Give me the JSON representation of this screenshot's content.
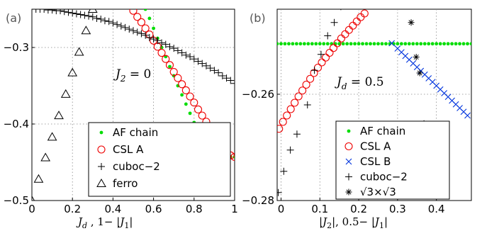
{
  "chart_data": [
    {
      "type": "scatter",
      "panel": "(a)",
      "annotation": "J2 = 0",
      "xlabel": "J_d ,  1− |J_1|",
      "ylabel": "",
      "xlim": [
        0,
        1
      ],
      "ylim": [
        -0.5,
        -0.25
      ],
      "xticks": [
        "0",
        "0.2",
        "0.4",
        "0.6",
        "0.8",
        "1"
      ],
      "xtick_values": [
        0,
        0.2,
        0.4,
        0.6,
        0.8,
        1
      ],
      "yticks": [
        "−0.5",
        "−0.4",
        "−0.3"
      ],
      "ytick_values": [
        -0.5,
        -0.4,
        -0.3
      ],
      "grid": true,
      "legend_position": "bottom-right",
      "series": [
        {
          "name": "AF chain",
          "marker": "dot",
          "color": "#00dd00",
          "x": [
            0.56,
            0.58,
            0.6,
            0.62,
            0.64,
            0.66,
            0.68,
            0.7,
            0.72,
            0.74,
            0.76,
            0.78,
            0.8,
            0.82,
            0.84,
            0.86,
            0.88,
            0.9,
            0.92,
            0.94,
            0.96,
            0.98,
            1.0
          ],
          "y": [
            -0.25,
            -0.262,
            -0.275,
            -0.288,
            -0.3,
            -0.312,
            -0.325,
            -0.337,
            -0.35,
            -0.362,
            -0.374,
            -0.386,
            -0.398,
            -0.409,
            -0.42,
            -0.431,
            -0.442,
            -0.443,
            -0.444,
            -0.444,
            -0.443,
            -0.443,
            -0.443
          ]
        },
        {
          "name": "CSL A",
          "marker": "circle",
          "color": "#ee0000",
          "x": [
            0.5,
            0.52,
            0.54,
            0.56,
            0.58,
            0.6,
            0.62,
            0.64,
            0.66,
            0.68,
            0.7,
            0.72,
            0.74,
            0.76,
            0.78,
            0.8,
            0.82,
            0.84,
            0.86,
            0.88,
            0.9,
            0.92,
            0.94,
            0.96,
            0.98,
            1.0
          ],
          "y": [
            -0.252,
            -0.26,
            -0.267,
            -0.275,
            -0.283,
            -0.291,
            -0.299,
            -0.307,
            -0.315,
            -0.323,
            -0.332,
            -0.34,
            -0.348,
            -0.356,
            -0.364,
            -0.372,
            -0.381,
            -0.389,
            -0.397,
            -0.405,
            -0.413,
            -0.421,
            -0.43,
            -0.437,
            -0.441,
            -0.443
          ]
        },
        {
          "name": "cuboc−2",
          "marker": "plus",
          "color": "#000000",
          "x": [
            0,
            0.02,
            0.04,
            0.06,
            0.08,
            0.1,
            0.12,
            0.14,
            0.16,
            0.18,
            0.2,
            0.22,
            0.24,
            0.26,
            0.28,
            0.3,
            0.32,
            0.34,
            0.36,
            0.38,
            0.4,
            0.42,
            0.44,
            0.46,
            0.48,
            0.5,
            0.52,
            0.54,
            0.56,
            0.58,
            0.6,
            0.62,
            0.64,
            0.66,
            0.68,
            0.7,
            0.72,
            0.74,
            0.76,
            0.78,
            0.8,
            0.82,
            0.84,
            0.86,
            0.88,
            0.9,
            0.92,
            0.94,
            0.96,
            0.98,
            1.0
          ],
          "y": [
            -0.25,
            -0.25,
            -0.25,
            -0.25,
            -0.251,
            -0.251,
            -0.252,
            -0.252,
            -0.253,
            -0.254,
            -0.255,
            -0.256,
            -0.257,
            -0.258,
            -0.259,
            -0.26,
            -0.262,
            -0.263,
            -0.265,
            -0.266,
            -0.268,
            -0.27,
            -0.272,
            -0.274,
            -0.276,
            -0.278,
            -0.28,
            -0.282,
            -0.284,
            -0.287,
            -0.289,
            -0.291,
            -0.294,
            -0.296,
            -0.299,
            -0.301,
            -0.304,
            -0.307,
            -0.31,
            -0.312,
            -0.315,
            -0.318,
            -0.321,
            -0.324,
            -0.327,
            -0.33,
            -0.333,
            -0.337,
            -0.34,
            -0.343,
            -0.347
          ]
        },
        {
          "name": "ferro",
          "marker": "triangle",
          "color": "#000000",
          "x": [
            0,
            0.033,
            0.067,
            0.1,
            0.133,
            0.167,
            0.2,
            0.233,
            0.267,
            0.3,
            0.333
          ],
          "y": [
            -0.5,
            -0.472,
            -0.444,
            -0.417,
            -0.389,
            -0.361,
            -0.333,
            -0.306,
            -0.278,
            -0.25,
            -0.222
          ]
        }
      ]
    },
    {
      "type": "scatter",
      "panel": "(b)",
      "annotation": "Jd = 0.5",
      "xlabel": "|J_2|,  0.5− |J_1|",
      "ylabel": "",
      "xlim": [
        -0.01,
        0.49
      ],
      "ylim": [
        -0.28,
        -0.244
      ],
      "xticks": [
        "0",
        "0.1",
        "0.2",
        "0.3",
        "0.4"
      ],
      "xtick_values": [
        0,
        0.1,
        0.2,
        0.3,
        0.4
      ],
      "yticks": [
        "−0.28",
        "−0.26"
      ],
      "ytick_values": [
        -0.28,
        -0.26
      ],
      "grid": true,
      "legend_position": "bottom-right",
      "series": [
        {
          "name": "AF chain",
          "marker": "dot",
          "color": "#00dd00",
          "x": [
            -0.01,
            0.0,
            0.01,
            0.02,
            0.03,
            0.04,
            0.05,
            0.06,
            0.07,
            0.08,
            0.09,
            0.1,
            0.11,
            0.12,
            0.13,
            0.14,
            0.15,
            0.16,
            0.17,
            0.18,
            0.19,
            0.2,
            0.21,
            0.22,
            0.23,
            0.24,
            0.25,
            0.26,
            0.27,
            0.28,
            0.29,
            0.3,
            0.31,
            0.32,
            0.33,
            0.34,
            0.35,
            0.36,
            0.37,
            0.38,
            0.39,
            0.4,
            0.41,
            0.42,
            0.43,
            0.44,
            0.45,
            0.46,
            0.47,
            0.48,
            0.49
          ],
          "y": [
            -0.2505,
            -0.2505,
            -0.2505,
            -0.2505,
            -0.2505,
            -0.2505,
            -0.2505,
            -0.2505,
            -0.2505,
            -0.2505,
            -0.2505,
            -0.2505,
            -0.2505,
            -0.2505,
            -0.2505,
            -0.2505,
            -0.2505,
            -0.2505,
            -0.2505,
            -0.2505,
            -0.2505,
            -0.2505,
            -0.2505,
            -0.2505,
            -0.2505,
            -0.2505,
            -0.2505,
            -0.2505,
            -0.2505,
            -0.2505,
            -0.2505,
            -0.2505,
            -0.2505,
            -0.2505,
            -0.2505,
            -0.2505,
            -0.2505,
            -0.2505,
            -0.2505,
            -0.2505,
            -0.2505,
            -0.2505,
            -0.2505,
            -0.2505,
            -0.2505,
            -0.2505,
            -0.2505,
            -0.2505,
            -0.2505,
            -0.2505,
            -0.2505
          ]
        },
        {
          "name": "CSL A",
          "marker": "circle",
          "color": "#ee0000",
          "x": [
            -0.005,
            0.005,
            0.015,
            0.025,
            0.035,
            0.045,
            0.055,
            0.065,
            0.075,
            0.085,
            0.095,
            0.105,
            0.115,
            0.125,
            0.135,
            0.145,
            0.155,
            0.165,
            0.175,
            0.185,
            0.195,
            0.205,
            0.215
          ],
          "y": [
            -0.2665,
            -0.2652,
            -0.264,
            -0.2628,
            -0.2616,
            -0.2604,
            -0.2593,
            -0.2582,
            -0.2571,
            -0.256,
            -0.255,
            -0.254,
            -0.2531,
            -0.2522,
            -0.2513,
            -0.2504,
            -0.2495,
            -0.2487,
            -0.2479,
            -0.2471,
            -0.2463,
            -0.2455,
            -0.2448
          ]
        },
        {
          "name": "CSL B",
          "marker": "cross",
          "color": "#0033dd",
          "x": [
            0.285,
            0.3,
            0.31,
            0.32,
            0.33,
            0.34,
            0.35,
            0.36,
            0.37,
            0.38,
            0.39,
            0.4,
            0.41,
            0.42,
            0.43,
            0.44,
            0.45,
            0.46,
            0.47,
            0.48
          ],
          "y": [
            -0.2504,
            -0.2514,
            -0.2521,
            -0.2528,
            -0.2535,
            -0.2542,
            -0.2549,
            -0.2556,
            -0.2563,
            -0.257,
            -0.2577,
            -0.2584,
            -0.2591,
            -0.2598,
            -0.2605,
            -0.2612,
            -0.2619,
            -0.2626,
            -0.2633,
            -0.264
          ]
        },
        {
          "name": "cuboc−2",
          "marker": "plus",
          "color": "#000000",
          "x": [
            -0.007,
            0.007,
            0.024,
            0.041,
            0.068,
            0.086,
            0.103,
            0.12,
            0.137,
            0.154
          ],
          "y": [
            -0.2785,
            -0.2745,
            -0.2705,
            -0.2675,
            -0.262,
            -0.2555,
            -0.2525,
            -0.249,
            -0.2465,
            -0.2435
          ]
        },
        {
          "name": "√3×√3",
          "marker": "asterisk",
          "color": "#000000",
          "x": [
            0.335,
            0.348,
            0.357,
            0.368,
            0.38,
            0.393
          ],
          "y": [
            -0.2465,
            -0.253,
            -0.256,
            -0.2655,
            -0.2695,
            -0.2745
          ]
        }
      ]
    }
  ]
}
